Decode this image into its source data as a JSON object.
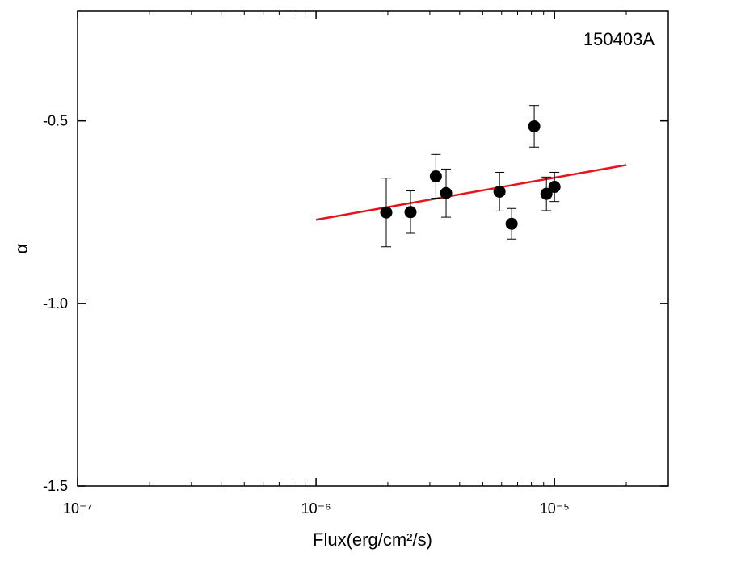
{
  "chart_data": {
    "type": "scatter",
    "annotation": "150403A",
    "xlabel": "Flux(erg/cm²/s)",
    "ylabel": "α",
    "xscale": "log",
    "xlim": [
      1e-07,
      3e-05
    ],
    "ylim": [
      -1.5,
      -0.2
    ],
    "xticks": [
      {
        "value": 1e-07,
        "label": "10⁻⁷"
      },
      {
        "value": 1e-06,
        "label": "10⁻⁶"
      },
      {
        "value": 1e-05,
        "label": "10⁻⁵"
      }
    ],
    "yticks": [
      -1.5,
      {
        "value": -1,
        "label": "-1.0"
      },
      -0.5
    ],
    "series": [
      {
        "color": "#000000",
        "x": [
          1.97e-06,
          2.49e-06,
          3.18e-06,
          3.51e-06,
          5.88e-06,
          6.61e-06,
          8.22e-06,
          9.25e-06,
          1e-05
        ],
        "values": [
          -0.751,
          -0.75,
          -0.652,
          -0.698,
          -0.694,
          -0.782,
          -0.515,
          -0.7,
          -0.681
        ],
        "errors": [
          0.094,
          0.058,
          0.06,
          0.066,
          0.053,
          0.042,
          0.057,
          0.046,
          0.04
        ]
      }
    ],
    "fit": {
      "color": "#e8141b",
      "x": [
        1e-06,
        2e-05
      ],
      "values": [
        -0.771,
        -0.621
      ]
    }
  }
}
